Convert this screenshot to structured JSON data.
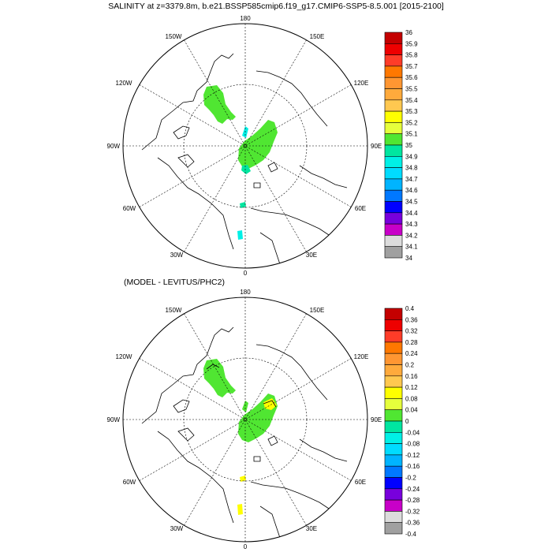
{
  "title": "SALINITY at z=3379.8m, b.e21.BSSP585cmip6.f19_g17.CMIP6-SSP5-8.5.001 [2015-2100]",
  "subtitle": "(MODEL - LEVITUS/PHC2)",
  "map_labels": {
    "lon_180": "180",
    "lon_150w": "150W",
    "lon_120w": "120W",
    "lon_90w": "90W",
    "lon_60w": "60W",
    "lon_30w": "30W",
    "lon_0": "0",
    "lon_30e": "30E",
    "lon_60e": "60E",
    "lon_90e": "90E",
    "lon_120e": "120E",
    "lon_150e": "150E"
  },
  "colorbar_top": {
    "labels": [
      "36",
      "35.9",
      "35.8",
      "35.7",
      "35.6",
      "35.5",
      "35.4",
      "35.3",
      "35.2",
      "35.1",
      "35",
      "34.9",
      "34.8",
      "34.7",
      "34.6",
      "34.5",
      "34.4",
      "34.3",
      "34.2",
      "34.1",
      "34"
    ],
    "colors": [
      "#c40000",
      "#ee0000",
      "#ff3c28",
      "#ff7800",
      "#ff9632",
      "#ffaa3c",
      "#ffc850",
      "#ffff00",
      "#e6ff3c",
      "#50e632",
      "#00e6a0",
      "#00f0e6",
      "#00dcff",
      "#00b4ff",
      "#0078ff",
      "#0000ff",
      "#7800dc",
      "#c800c8",
      "#dcdcdc",
      "#a0a0a0"
    ]
  },
  "colorbar_bottom": {
    "labels": [
      "0.4",
      "0.36",
      "0.32",
      "0.28",
      "0.24",
      "0.2",
      "0.16",
      "0.12",
      "0.08",
      "0.04",
      "0",
      "-0.04",
      "-0.08",
      "-0.12",
      "-0.16",
      "-0.2",
      "-0.24",
      "-0.28",
      "-0.32",
      "-0.36",
      "-0.4"
    ],
    "colors": [
      "#c40000",
      "#ee0000",
      "#ff3c28",
      "#ff7800",
      "#ff9632",
      "#ffaa3c",
      "#ffc850",
      "#ffff00",
      "#e6ff3c",
      "#50e632",
      "#00e6a0",
      "#00f0e6",
      "#00dcff",
      "#00b4ff",
      "#0078ff",
      "#0000ff",
      "#7800dc",
      "#c800c8",
      "#dcdcdc",
      "#a0a0a0"
    ]
  }
}
